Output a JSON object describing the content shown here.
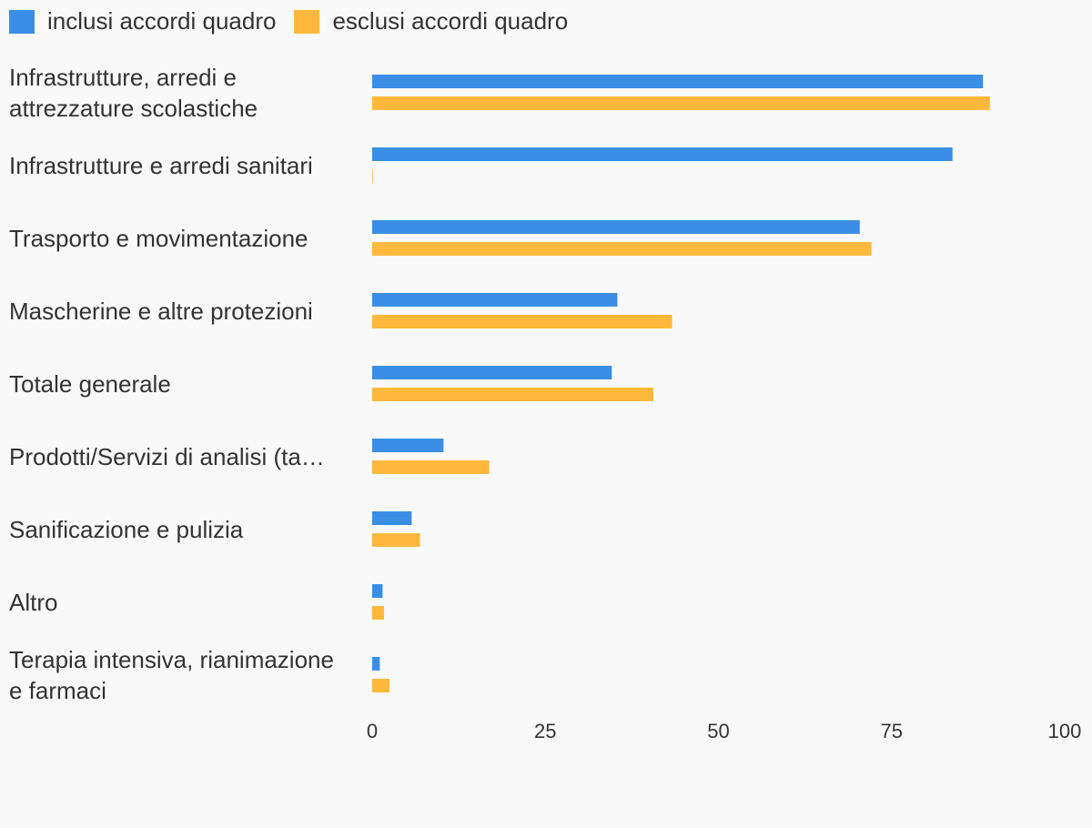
{
  "chart_data": {
    "type": "bar",
    "orientation": "horizontal",
    "categories": [
      "Infrastrutture, arredi e attrezzature scolastiche",
      "Infrastrutture e arredi sanitari",
      "Trasporto e movimentazione",
      "Mascherine e altre protezioni",
      "Totale generale",
      "Prodotti/Servizi di analisi (ta…",
      "Sanificazione e pulizia",
      "Altro",
      "Terapia intensiva, rianimazione e farmaci"
    ],
    "category_lines": [
      [
        "Infrastrutture, arredi e",
        "attrezzature scolastiche"
      ],
      [
        "Infrastrutture e arredi sanitari"
      ],
      [
        "Trasporto e movimentazione"
      ],
      [
        "Mascherine e altre protezioni"
      ],
      [
        "Totale generale"
      ],
      [
        "Prodotti/Servizi di analisi (ta…"
      ],
      [
        "Sanificazione e pulizia"
      ],
      [
        "Altro"
      ],
      [
        "Terapia intensiva, rianimazione",
        "e farmaci"
      ]
    ],
    "series": [
      {
        "name": "inclusi accordi quadro",
        "color": "#3a8ee6",
        "values": [
          88.2,
          83.8,
          70.4,
          35.4,
          34.6,
          10.3,
          5.7,
          1.5,
          1.1
        ]
      },
      {
        "name": "esclusi accordi quadro",
        "color": "#ffb83c",
        "values": [
          89.2,
          0.1,
          72.1,
          43.3,
          40.6,
          16.9,
          6.9,
          1.7,
          2.5
        ]
      }
    ],
    "xlim": [
      0,
      100
    ],
    "xticks": [
      "0",
      "25",
      "50",
      "75",
      "100"
    ],
    "legend_position": "top-left",
    "grid": false
  }
}
